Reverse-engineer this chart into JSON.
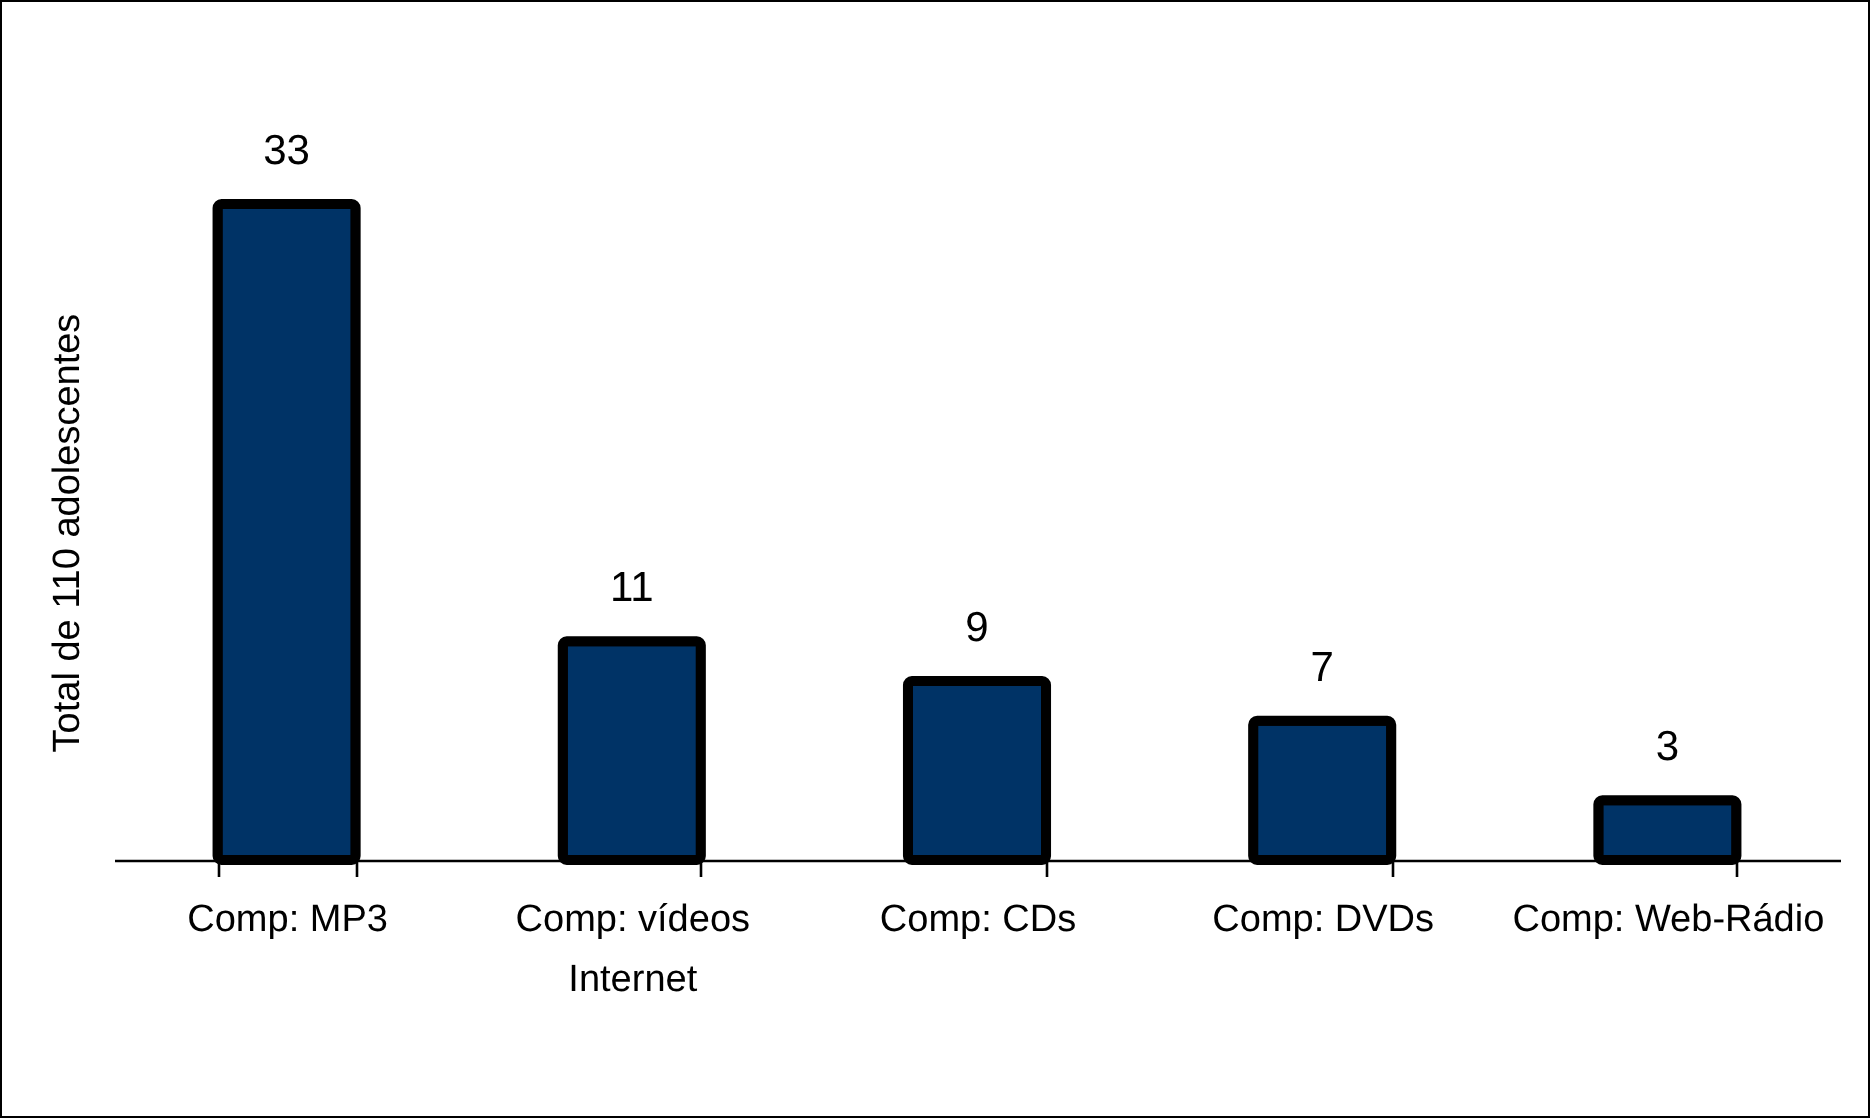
{
  "chart_data": {
    "type": "bar",
    "ylabel": "Total de 110 adolescentes",
    "categories": [
      "Comp: MP3",
      "Comp: vídeos Internet",
      "Comp: CDs",
      "Comp: DVDs",
      "Comp: Web-Rádio"
    ],
    "values": [
      33,
      11,
      9,
      7,
      3
    ],
    "color": "#003366",
    "data_labels": true,
    "grid": false
  }
}
